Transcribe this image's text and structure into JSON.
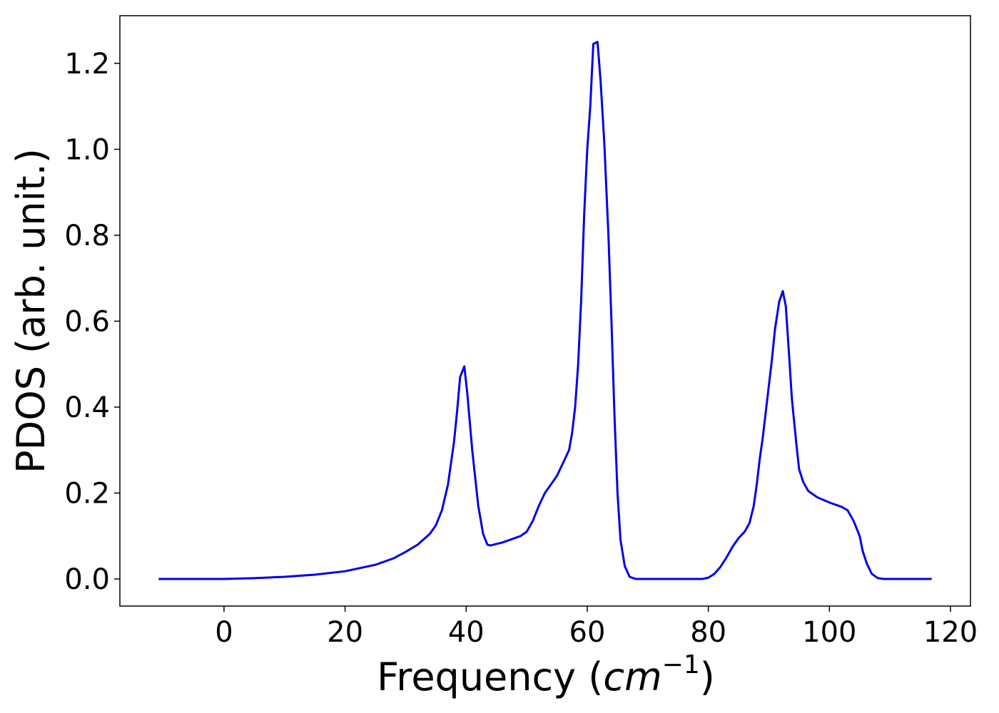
{
  "chart_data": {
    "type": "line",
    "xlabel": [
      "Frequency (",
      "cm",
      "−1",
      ")"
    ],
    "ylabel": "PDOS (arb. unit.)",
    "color": "#0000ee",
    "x": [
      -10.8,
      0,
      5,
      10,
      15,
      20,
      25,
      28,
      30,
      32,
      34,
      35,
      36,
      37,
      38,
      38.5,
      39,
      39.7,
      40.2,
      41,
      42,
      42.8,
      43.5,
      44,
      46,
      48,
      49,
      50,
      51,
      52,
      53,
      54,
      55,
      56,
      57,
      57.5,
      58,
      58.5,
      59,
      59.5,
      60,
      60.5,
      61,
      61.7,
      62.2,
      62.8,
      63.5,
      64,
      64.5,
      65,
      65.5,
      66.2,
      67,
      68,
      79,
      80,
      81,
      82,
      83,
      84,
      85,
      86,
      86.8,
      87.5,
      88,
      88.5,
      89,
      89.5,
      90,
      90.5,
      91,
      91.7,
      92.3,
      92.8,
      93.3,
      93.8,
      94.5,
      95,
      95.7,
      96.5,
      98,
      100,
      102,
      103,
      104,
      105,
      105.5,
      106.2,
      107,
      108,
      109,
      116.9
    ],
    "values": [
      0,
      0,
      0.002,
      0.005,
      0.01,
      0.018,
      0.033,
      0.048,
      0.063,
      0.08,
      0.105,
      0.125,
      0.16,
      0.22,
      0.32,
      0.39,
      0.47,
      0.495,
      0.43,
      0.3,
      0.17,
      0.105,
      0.08,
      0.078,
      0.085,
      0.095,
      0.1,
      0.11,
      0.135,
      0.17,
      0.2,
      0.22,
      0.24,
      0.27,
      0.3,
      0.34,
      0.4,
      0.5,
      0.65,
      0.85,
      1.0,
      1.1,
      1.245,
      1.25,
      1.16,
      1.02,
      0.8,
      0.6,
      0.38,
      0.2,
      0.09,
      0.03,
      0.005,
      0,
      0,
      0.003,
      0.012,
      0.028,
      0.05,
      0.075,
      0.095,
      0.11,
      0.13,
      0.17,
      0.22,
      0.28,
      0.33,
      0.39,
      0.45,
      0.51,
      0.58,
      0.645,
      0.67,
      0.635,
      0.53,
      0.42,
      0.32,
      0.255,
      0.225,
      0.205,
      0.19,
      0.178,
      0.168,
      0.16,
      0.135,
      0.1,
      0.065,
      0.035,
      0.012,
      0.002,
      0,
      0
    ],
    "xlim": [
      -17.2,
      123.3
    ],
    "ylim": [
      -0.063,
      1.311
    ],
    "xticks": [
      0,
      20,
      40,
      60,
      80,
      100,
      120
    ],
    "yticks": [
      {
        "value": 0,
        "label": "0.0"
      },
      {
        "value": 0.2,
        "label": "0.2"
      },
      {
        "value": 0.4,
        "label": "0.4"
      },
      {
        "value": 0.6,
        "label": "0.6"
      },
      {
        "value": 0.8,
        "label": "0.8"
      },
      {
        "value": 1,
        "label": "1.0"
      },
      {
        "value": 1.2,
        "label": "1.2"
      }
    ],
    "grid": false
  }
}
